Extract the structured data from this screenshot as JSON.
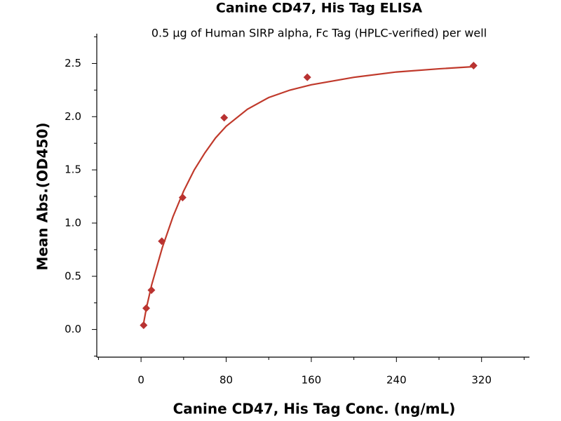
{
  "chart_data": {
    "type": "scatter",
    "title": "Canine CD47, His Tag ELISA",
    "subtitle": "0.5 µg of Human SIRP alpha, Fc Tag (HPLC-verified) per well",
    "x_label": "Canine CD47, His Tag Conc. (ng/mL)",
    "y_label": "Mean Abs.(OD450)",
    "series": [
      {
        "color": "#b83232",
        "marker": "diamond",
        "x": [
          2.44,
          4.88,
          9.77,
          19.53,
          39.06,
          78.13,
          156.25,
          312.5
        ],
        "values": [
          0.04,
          0.2,
          0.37,
          0.83,
          1.24,
          1.99,
          2.37,
          2.48
        ]
      },
      {
        "color": "#c0392b",
        "marker": "line",
        "x": [
          2.44,
          5,
          10,
          20,
          30,
          40,
          50,
          60,
          70,
          80,
          100,
          120,
          140,
          160,
          200,
          240,
          280,
          312.5
        ],
        "values": [
          0.06,
          0.2,
          0.42,
          0.77,
          1.06,
          1.3,
          1.5,
          1.66,
          1.8,
          1.91,
          2.07,
          2.18,
          2.25,
          2.3,
          2.37,
          2.42,
          2.45,
          2.47
        ]
      }
    ],
    "xlim": [
      -41.6,
      365
    ],
    "ylim": [
      -0.26,
      2.78
    ],
    "xticks": [
      0,
      80,
      160,
      240,
      320
    ],
    "xminorticks": [
      -40,
      40,
      120,
      200,
      280,
      360
    ],
    "yticks": [
      {
        "value": 0,
        "label": "0.0"
      },
      0.5,
      {
        "value": 1,
        "label": "1.0"
      },
      1.5,
      {
        "value": 2,
        "label": "2.0"
      },
      2.5
    ],
    "yminorticks": [
      -0.25,
      0.25,
      0.75,
      1.25,
      1.75,
      2.25,
      2.75
    ]
  }
}
